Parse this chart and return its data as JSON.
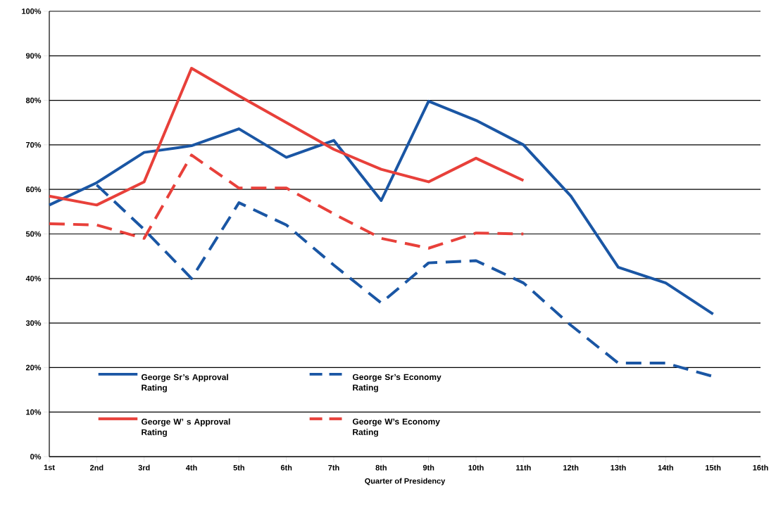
{
  "chart_data": {
    "type": "line",
    "xlabel": "Quarter of Presidency",
    "categories": [
      "1st",
      "2nd",
      "3rd",
      "4th",
      "5th",
      "6th",
      "7th",
      "8th",
      "9th",
      "10th",
      "11th",
      "12th",
      "13th",
      "14th",
      "15th",
      "16th"
    ],
    "series": [
      {
        "name": "George Sr’s Approval Rating",
        "color": "#1a56a4",
        "line_style": "solid",
        "values": [
          56.5,
          61.5,
          68.3,
          69.8,
          73.6,
          67.2,
          71,
          57.5,
          79.8,
          75.5,
          70,
          58.5,
          42.5,
          39,
          32,
          null
        ]
      },
      {
        "name": "George Sr’s Economy Rating",
        "color": "#1a56a4",
        "line_style": "dashed",
        "values": [
          null,
          61,
          51,
          40,
          57,
          52,
          43,
          34.5,
          43.5,
          44,
          39,
          29.5,
          21,
          21,
          18,
          null
        ]
      },
      {
        "name": "George W’ s Approval Rating",
        "color": "#e8403a",
        "line_style": "solid",
        "values": [
          58.5,
          56.5,
          61.7,
          87.2,
          81,
          75,
          69,
          64.5,
          61.7,
          67,
          62,
          null,
          null,
          null,
          null,
          null
        ]
      },
      {
        "name": "George W’s Economy Rating",
        "color": "#e8403a",
        "line_style": "dashed",
        "values": [
          52.3,
          52,
          49,
          67.7,
          60.3,
          60.3,
          54.5,
          49,
          46.8,
          50.2,
          50,
          null,
          null,
          null,
          null,
          null
        ]
      }
    ],
    "ylim": [
      0,
      100
    ],
    "yticks": [
      {
        "value": 0,
        "label": "0%"
      },
      {
        "value": 10,
        "label": "10%"
      },
      {
        "value": 20,
        "label": "20%"
      },
      {
        "value": 30,
        "label": "30%"
      },
      {
        "value": 40,
        "label": "40%"
      },
      {
        "value": 50,
        "label": "50%"
      },
      {
        "value": 60,
        "label": "60%"
      },
      {
        "value": 70,
        "label": "70%"
      },
      {
        "value": 80,
        "label": "80%"
      },
      {
        "value": 90,
        "label": "90%"
      },
      {
        "value": 100,
        "label": "100%"
      }
    ],
    "grid": "y",
    "legend": "bottom left",
    "marker": "none"
  }
}
